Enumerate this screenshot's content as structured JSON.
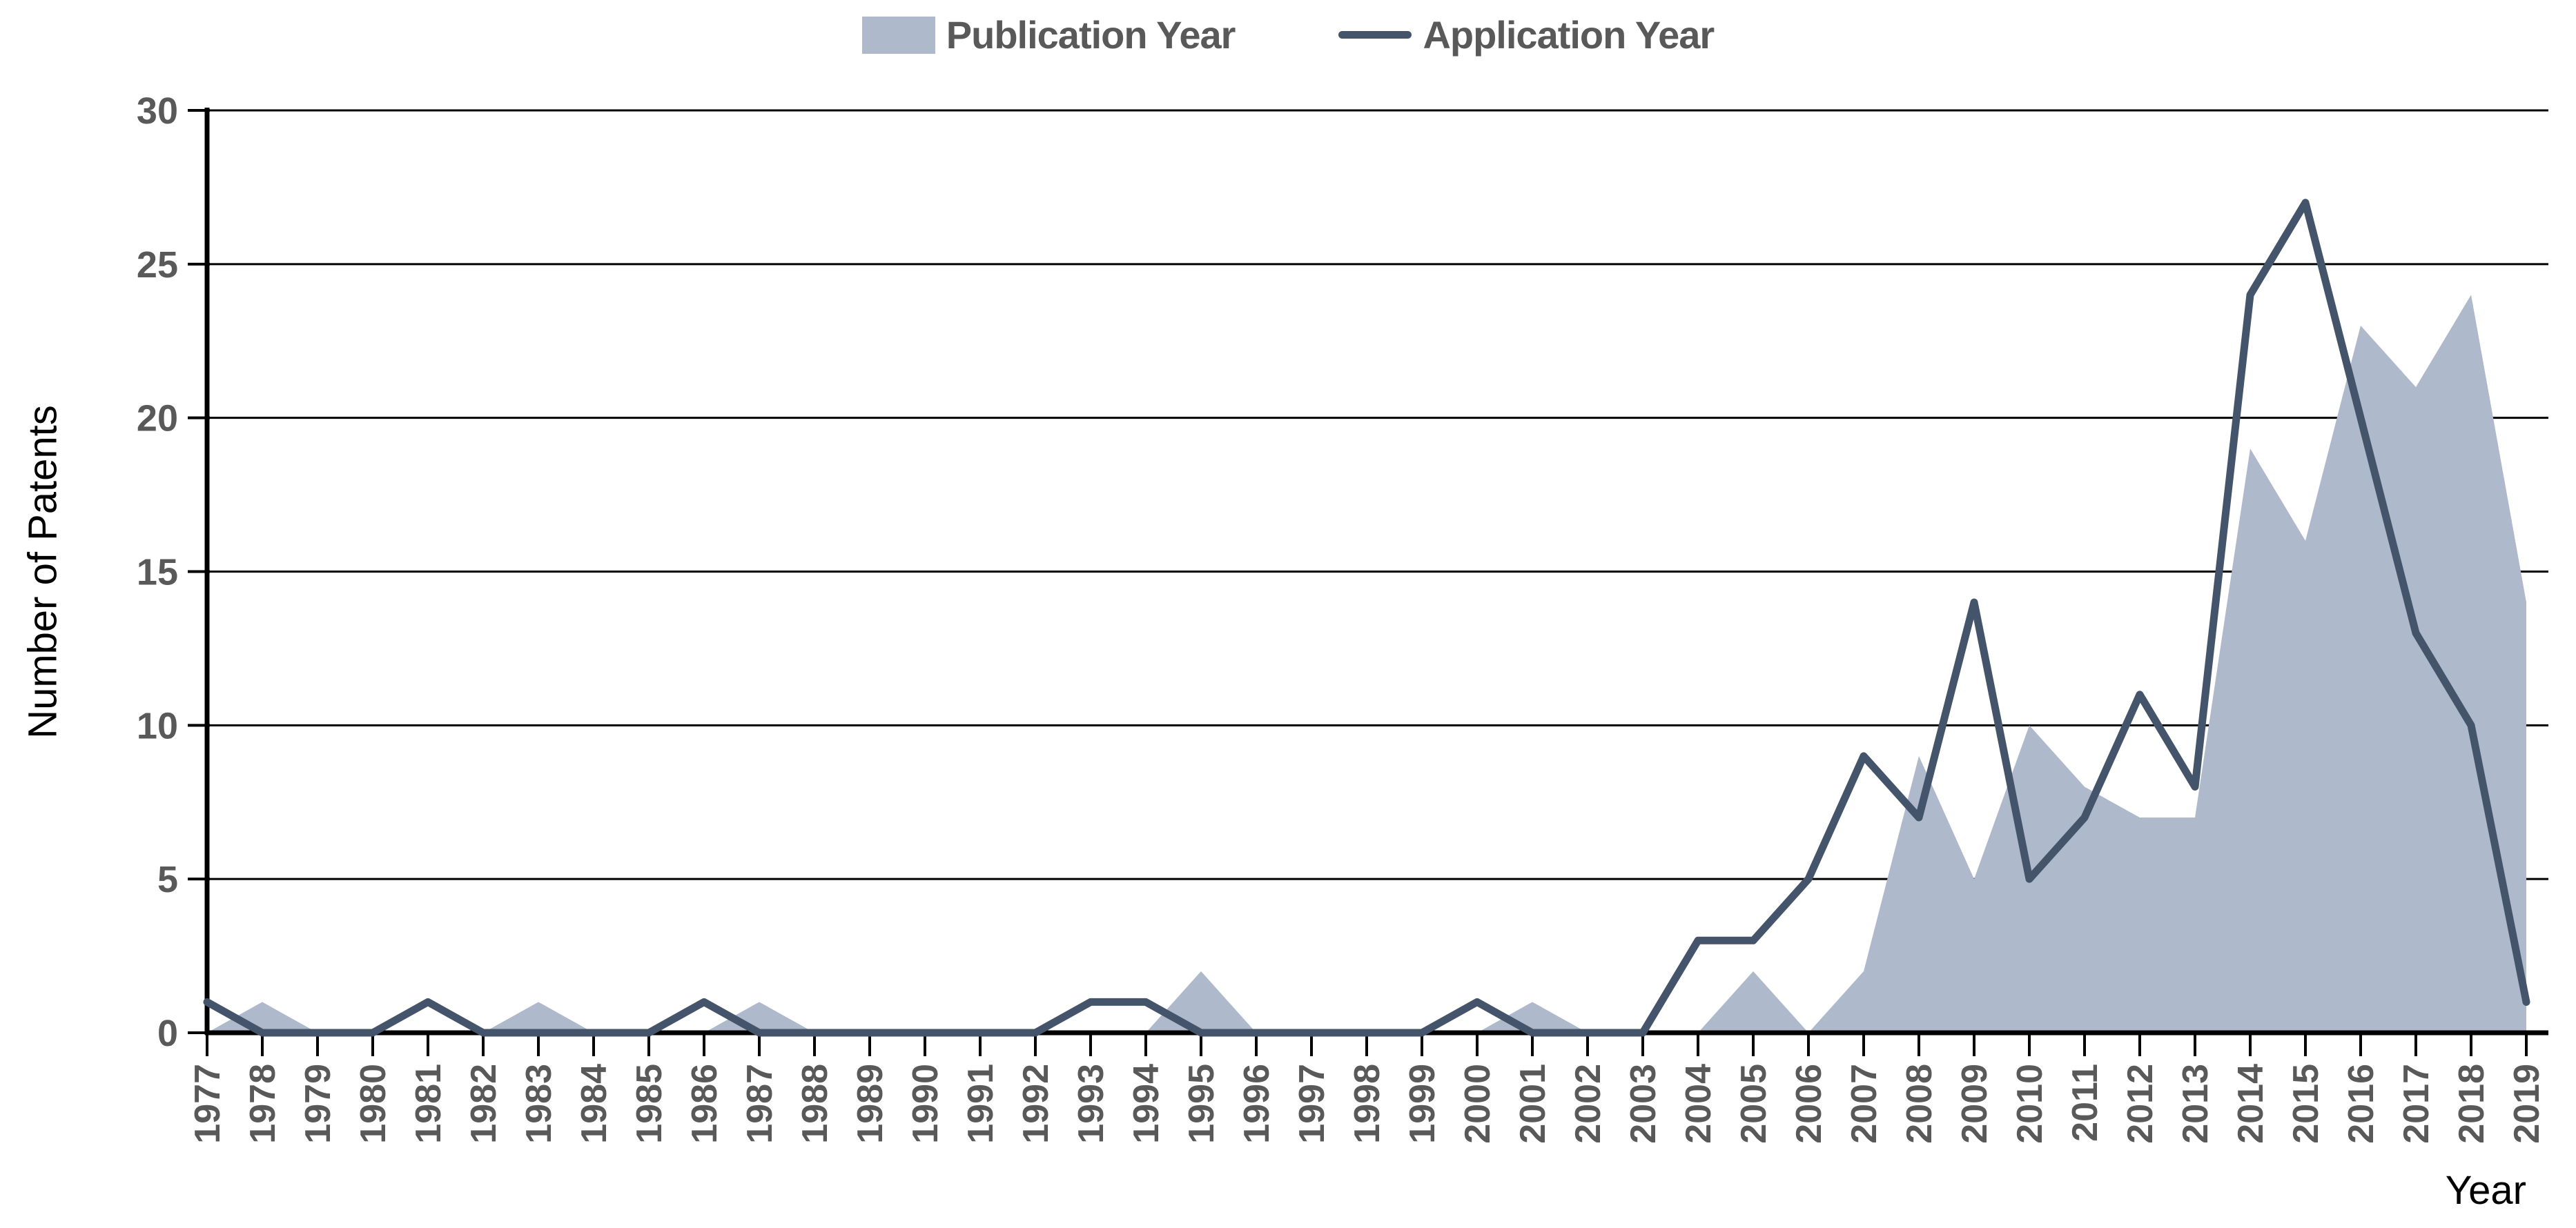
{
  "legend": {
    "publication": "Publication Year",
    "application": "Application Year"
  },
  "axes": {
    "y_title": "Number of Patents",
    "x_title": "Year"
  },
  "colors": {
    "area_fill": "#AEB9CB",
    "line_stroke": "#44546A",
    "axis": "#000000",
    "gridline": "#000000",
    "tick_label": "#595959"
  },
  "chart_data": {
    "type": "area",
    "title": "",
    "xlabel": "Year",
    "ylabel": "Number of Patents",
    "ylim": [
      0,
      30
    ],
    "y_ticks": [
      0,
      5,
      10,
      15,
      20,
      25,
      30
    ],
    "grid": true,
    "legend_position": "top-center",
    "x": [
      1977,
      1978,
      1979,
      1980,
      1981,
      1982,
      1983,
      1984,
      1985,
      1986,
      1987,
      1988,
      1989,
      1990,
      1991,
      1992,
      1993,
      1994,
      1995,
      1996,
      1997,
      1998,
      1999,
      2000,
      2001,
      2002,
      2003,
      2004,
      2005,
      2006,
      2007,
      2008,
      2009,
      2010,
      2011,
      2012,
      2013,
      2014,
      2015,
      2016,
      2017,
      2018,
      2019
    ],
    "series": [
      {
        "name": "Publication Year",
        "type": "area",
        "color": "#AEB9CB",
        "values": [
          0,
          1,
          0,
          0,
          0,
          0,
          1,
          0,
          0,
          0,
          1,
          0,
          0,
          0,
          0,
          0,
          0,
          0,
          2,
          0,
          0,
          0,
          0,
          0,
          1,
          0,
          0,
          0,
          2,
          0,
          2,
          9,
          5,
          10,
          8,
          7,
          7,
          19,
          16,
          23,
          21,
          24,
          14
        ]
      },
      {
        "name": "Application Year",
        "type": "line",
        "color": "#44546A",
        "values": [
          1,
          0,
          0,
          0,
          1,
          0,
          0,
          0,
          0,
          1,
          0,
          0,
          0,
          0,
          0,
          0,
          1,
          1,
          0,
          0,
          0,
          0,
          0,
          1,
          0,
          0,
          0,
          3,
          3,
          5,
          9,
          7,
          14,
          5,
          7,
          11,
          8,
          24,
          27,
          20,
          13,
          10,
          1
        ]
      }
    ]
  }
}
